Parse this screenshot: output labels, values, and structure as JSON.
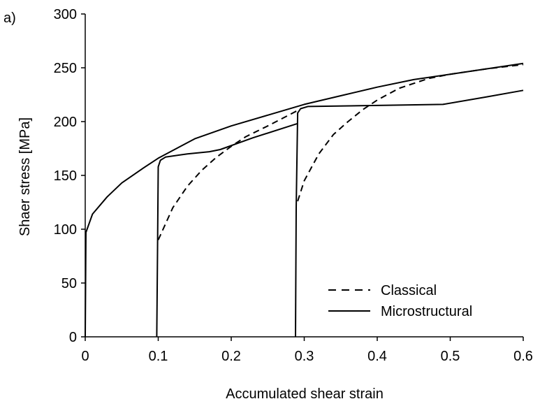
{
  "chart_data": {
    "type": "line",
    "panel_label": "a)",
    "xlabel": "Accumulated shear strain",
    "ylabel": "Shaer stress [MPa]",
    "xlim": [
      0,
      0.6
    ],
    "ylim": [
      0,
      300
    ],
    "x_ticks": [
      "0",
      "0.1",
      "0.2",
      "0.3",
      "0.4",
      "0.5",
      "0.6"
    ],
    "y_ticks": [
      "0",
      "50",
      "100",
      "150",
      "200",
      "250",
      "300"
    ],
    "grid": false,
    "legend_position": "bottom-right",
    "legend": [
      {
        "label": "Classical",
        "style": "dashed"
      },
      {
        "label": "Microstructural",
        "style": "solid"
      }
    ],
    "series": [
      {
        "name": "Microstructural",
        "style": "solid",
        "segments": [
          [
            [
              0,
              0
            ],
            [
              0.001,
              97
            ],
            [
              0.01,
              114
            ],
            [
              0.03,
              130
            ],
            [
              0.05,
              143
            ],
            [
              0.08,
              157
            ],
            [
              0.1,
              166
            ],
            [
              0.15,
              184
            ],
            [
              0.2,
              196
            ],
            [
              0.25,
              206
            ],
            [
              0.3,
              216
            ],
            [
              0.35,
              224
            ],
            [
              0.4,
              232
            ],
            [
              0.45,
              239
            ],
            [
              0.5,
              244
            ],
            [
              0.55,
              249
            ],
            [
              0.6,
              254
            ]
          ],
          [
            [
              0.098,
              0
            ],
            [
              0.099,
              80
            ],
            [
              0.1,
              158
            ],
            [
              0.103,
              164
            ],
            [
              0.11,
              167
            ],
            [
              0.14,
              170
            ],
            [
              0.17,
              172
            ],
            [
              0.185,
              174
            ],
            [
              0.23,
              185
            ],
            [
              0.29,
              198
            ]
          ],
          [
            [
              0.288,
              0
            ],
            [
              0.289,
              120
            ],
            [
              0.291,
              208
            ],
            [
              0.295,
              212
            ],
            [
              0.305,
              214
            ],
            [
              0.4,
              215
            ],
            [
              0.49,
              216
            ],
            [
              0.55,
              223
            ],
            [
              0.6,
              229
            ]
          ]
        ]
      },
      {
        "name": "Classical",
        "style": "dashed",
        "segments": [
          [
            [
              0.1,
              90
            ],
            [
              0.12,
              120
            ],
            [
              0.14,
              140
            ],
            [
              0.16,
              155
            ],
            [
              0.18,
              167
            ],
            [
              0.2,
              177
            ],
            [
              0.22,
              186
            ],
            [
              0.25,
              196
            ],
            [
              0.29,
              210
            ]
          ],
          [
            [
              0.291,
              126
            ],
            [
              0.3,
              145
            ],
            [
              0.32,
              170
            ],
            [
              0.34,
              188
            ],
            [
              0.36,
              200
            ],
            [
              0.38,
              211
            ],
            [
              0.4,
              220
            ],
            [
              0.43,
              231
            ],
            [
              0.47,
              240
            ],
            [
              0.5,
              244
            ],
            [
              0.55,
              249
            ],
            [
              0.6,
              253
            ]
          ]
        ]
      }
    ]
  }
}
